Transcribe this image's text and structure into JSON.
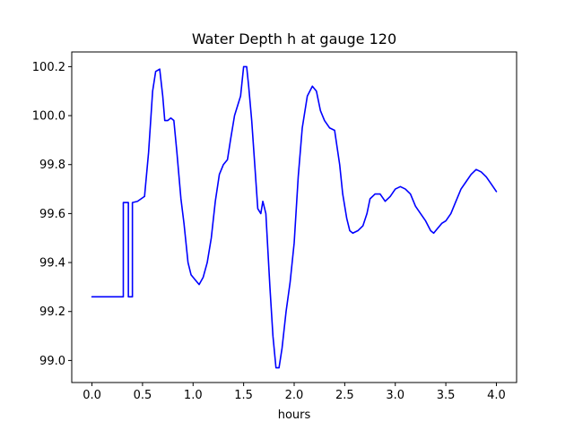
{
  "chart_data": {
    "type": "line",
    "title": "Water Depth h at gauge 120",
    "xlabel": "hours",
    "ylabel": "",
    "xlim": [
      -0.2,
      4.2
    ],
    "ylim": [
      98.91,
      100.26
    ],
    "x_ticks": [
      0.0,
      0.5,
      1.0,
      1.5,
      2.0,
      2.5,
      3.0,
      3.5,
      4.0
    ],
    "x_tick_labels": [
      "0.0",
      "0.5",
      "1.0",
      "1.5",
      "2.0",
      "2.5",
      "3.0",
      "3.5",
      "4.0"
    ],
    "y_ticks": [
      99.0,
      99.2,
      99.4,
      99.6,
      99.8,
      100.0,
      100.2
    ],
    "y_tick_labels": [
      "99.0",
      "99.2",
      "99.4",
      "99.6",
      "99.8",
      "100.0",
      "100.2"
    ],
    "grid": false,
    "legend": "none",
    "series": [
      {
        "color": "#0000ff",
        "x": [
          0.0,
          0.31,
          0.31,
          0.36,
          0.36,
          0.4,
          0.4,
          0.45,
          0.52,
          0.56,
          0.6,
          0.63,
          0.67,
          0.7,
          0.72,
          0.75,
          0.78,
          0.81,
          0.84,
          0.88,
          0.91,
          0.95,
          0.98,
          1.02,
          1.06,
          1.1,
          1.14,
          1.18,
          1.22,
          1.26,
          1.3,
          1.34,
          1.37,
          1.41,
          1.44,
          1.47,
          1.5,
          1.53,
          1.55,
          1.58,
          1.61,
          1.64,
          1.67,
          1.69,
          1.72,
          1.74,
          1.76,
          1.79,
          1.82,
          1.85,
          1.88,
          1.92,
          1.96,
          2.0,
          2.04,
          2.08,
          2.13,
          2.18,
          2.22,
          2.26,
          2.3,
          2.35,
          2.4,
          2.45,
          2.48,
          2.52,
          2.55,
          2.58,
          2.63,
          2.68,
          2.72,
          2.75,
          2.8,
          2.85,
          2.9,
          2.95,
          3.0,
          3.05,
          3.1,
          3.15,
          3.2,
          3.25,
          3.3,
          3.35,
          3.38,
          3.42,
          3.46,
          3.5,
          3.55,
          3.6,
          3.65,
          3.7,
          3.75,
          3.8,
          3.85,
          3.9,
          3.95,
          4.0
        ],
        "y": [
          99.26,
          99.26,
          99.645,
          99.645,
          99.26,
          99.26,
          99.645,
          99.65,
          99.67,
          99.85,
          100.1,
          100.18,
          100.19,
          100.08,
          99.98,
          99.98,
          99.99,
          99.98,
          99.85,
          99.66,
          99.56,
          99.4,
          99.35,
          99.33,
          99.31,
          99.34,
          99.4,
          99.5,
          99.65,
          99.76,
          99.8,
          99.82,
          99.9,
          100.0,
          100.04,
          100.08,
          100.2,
          100.2,
          100.12,
          99.98,
          99.8,
          99.62,
          99.6,
          99.65,
          99.6,
          99.45,
          99.3,
          99.1,
          98.97,
          98.97,
          99.05,
          99.2,
          99.32,
          99.48,
          99.75,
          99.95,
          100.08,
          100.12,
          100.1,
          100.02,
          99.98,
          99.95,
          99.94,
          99.8,
          99.68,
          99.58,
          99.53,
          99.52,
          99.53,
          99.55,
          99.6,
          99.66,
          99.68,
          99.68,
          99.65,
          99.67,
          99.7,
          99.71,
          99.7,
          99.68,
          99.63,
          99.6,
          99.57,
          99.53,
          99.52,
          99.54,
          99.56,
          99.57,
          99.6,
          99.65,
          99.7,
          99.73,
          99.76,
          99.78,
          99.77,
          99.75,
          99.72,
          99.69
        ]
      }
    ]
  }
}
